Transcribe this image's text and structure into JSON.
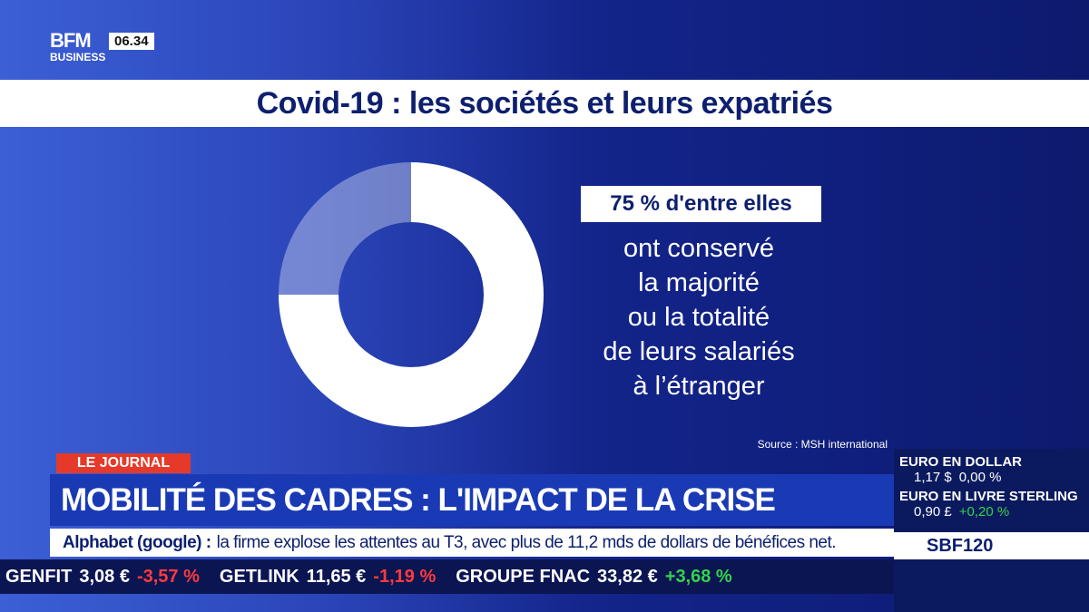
{
  "channel": {
    "logo_top": "BFM",
    "logo_bottom": "BUSINESS",
    "time": "06.34"
  },
  "chart_data": {
    "type": "pie",
    "title": "Covid-19 : les sociétés et leurs expatriés",
    "values": [
      75,
      25
    ],
    "value_labels": [
      "75 % d'entre elles",
      null
    ],
    "colors": [
      "#ffffff",
      "rgba(255,255,255,0.35)"
    ],
    "description": [
      "ont conservé",
      "la majorité",
      "ou la totalité",
      "de leurs salariés",
      "à l’étranger"
    ],
    "source": "Source : MSH international"
  },
  "lower_third": {
    "tag": "LE JOURNAL",
    "headline": "MOBILITÉ DES CADRES : L'IMPACT DE LA CRISE",
    "news_subject": "Alphabet (google) :",
    "news_text": "la firme explose les attentes au T3, avec plus de 11,2 mds de dollars de bénéfices net."
  },
  "market_panel": {
    "items": [
      {
        "label": "EURO EN DOLLAR",
        "value": "1,17 $",
        "change": "0,00 %"
      },
      {
        "label": "EURO EN LIVRE STERLING",
        "value": "0,90 £",
        "change": "+0,20 %"
      }
    ],
    "index": "SBF120"
  },
  "ticker": [
    {
      "name": "GENFIT",
      "price": "3,08 €",
      "change": "-3,57 %",
      "change_color": "#ff3b3b"
    },
    {
      "name": "GETLINK",
      "price": "11,65 €",
      "change": "-1,19 %",
      "change_color": "#ff3b3b"
    },
    {
      "name": "GROUPE FNAC",
      "price": "33,82 €",
      "change": "+3,68 %",
      "change_color": "#35d24a"
    }
  ]
}
